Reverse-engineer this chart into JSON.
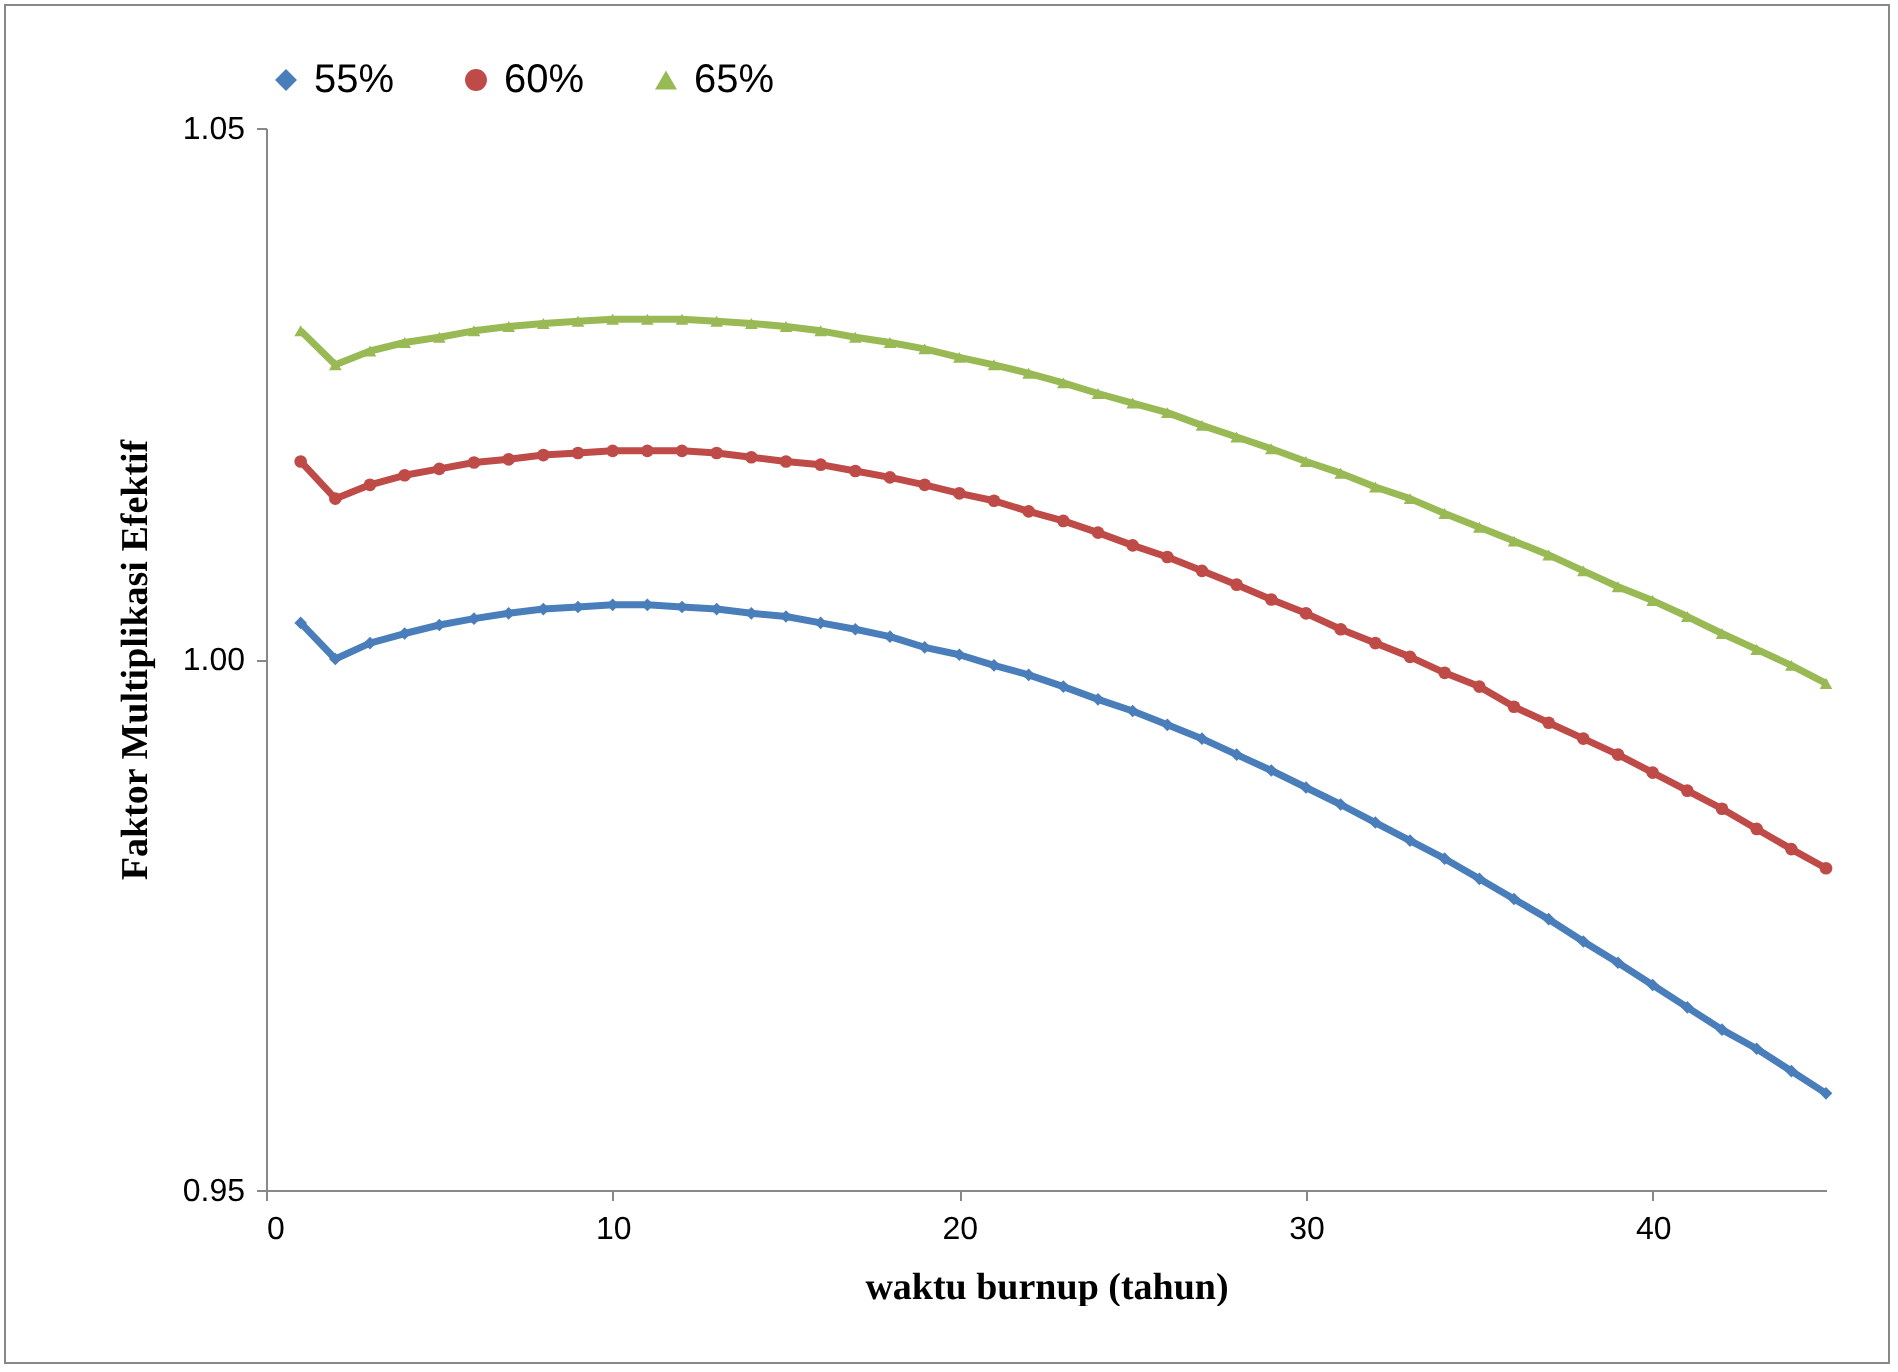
{
  "chart_data": {
    "type": "line",
    "xlabel": "waktu burnup (tahun)",
    "ylabel": "Faktor Multiplikasi Efektif",
    "x": [
      1,
      2,
      3,
      4,
      5,
      6,
      7,
      8,
      9,
      10,
      11,
      12,
      13,
      14,
      15,
      16,
      17,
      18,
      19,
      20,
      21,
      22,
      23,
      24,
      25,
      26,
      27,
      28,
      29,
      30,
      31,
      32,
      33,
      34,
      35,
      36,
      37,
      38,
      39,
      40,
      41,
      42,
      43,
      44,
      45
    ],
    "series": [
      {
        "name": "55%",
        "color": "#4a7ebb",
        "marker": "diamond",
        "values": [
          1.0034,
          1.0,
          1.0015,
          1.0024,
          1.0032,
          1.0038,
          1.0043,
          1.0047,
          1.0049,
          1.0051,
          1.0051,
          1.0049,
          1.0047,
          1.0043,
          1.004,
          1.0034,
          1.0028,
          1.0021,
          1.0011,
          1.0004,
          0.9994,
          0.9985,
          0.9974,
          0.9962,
          0.9951,
          0.9938,
          0.9925,
          0.991,
          0.9895,
          0.9879,
          0.9863,
          0.9846,
          0.9829,
          0.9812,
          0.9793,
          0.9774,
          0.9755,
          0.9734,
          0.9714,
          0.9693,
          0.9672,
          0.9651,
          0.9633,
          0.9612,
          0.9591
        ]
      },
      {
        "name": "60%",
        "color": "#be4b48",
        "marker": "circle",
        "values": [
          1.0186,
          1.0151,
          1.0164,
          1.0173,
          1.0179,
          1.0185,
          1.0188,
          1.0192,
          1.0194,
          1.0196,
          1.0196,
          1.0196,
          1.0194,
          1.019,
          1.0186,
          1.0183,
          1.0177,
          1.0171,
          1.0164,
          1.0156,
          1.0149,
          1.0139,
          1.013,
          1.0119,
          1.0107,
          1.0096,
          1.0083,
          1.007,
          1.0056,
          1.0043,
          1.0028,
          1.0015,
          1.0002,
          0.9987,
          0.9974,
          0.9955,
          0.994,
          0.9925,
          0.991,
          0.9893,
          0.9876,
          0.9859,
          0.984,
          0.9821,
          0.9803
        ]
      },
      {
        "name": "65%",
        "color": "#98b954",
        "marker": "triangle",
        "values": [
          1.0309,
          1.0277,
          1.029,
          1.0298,
          1.0303,
          1.0309,
          1.0313,
          1.0316,
          1.0318,
          1.032,
          1.032,
          1.032,
          1.0318,
          1.0316,
          1.0313,
          1.0309,
          1.0303,
          1.0298,
          1.0292,
          1.0284,
          1.0277,
          1.0269,
          1.026,
          1.025,
          1.0241,
          1.0232,
          1.022,
          1.0209,
          1.0198,
          1.0186,
          1.0175,
          1.0162,
          1.0151,
          1.0137,
          1.0124,
          1.0111,
          1.0098,
          1.0083,
          1.0068,
          1.0055,
          1.004,
          1.0024,
          1.0009,
          0.9994,
          0.9977
        ]
      }
    ],
    "xlim": [
      0,
      45
    ],
    "xticks": [
      0,
      10,
      20,
      30,
      40
    ],
    "ylim": [
      0.95,
      1.05
    ],
    "yticks": [
      {
        "value": 0.95,
        "label": "0.95"
      },
      {
        "value": 1.0,
        "label": "1.00"
      },
      {
        "value": 1.05,
        "label": "1.05"
      }
    ],
    "grid": false,
    "legend": "top",
    "line_style": "solid"
  }
}
